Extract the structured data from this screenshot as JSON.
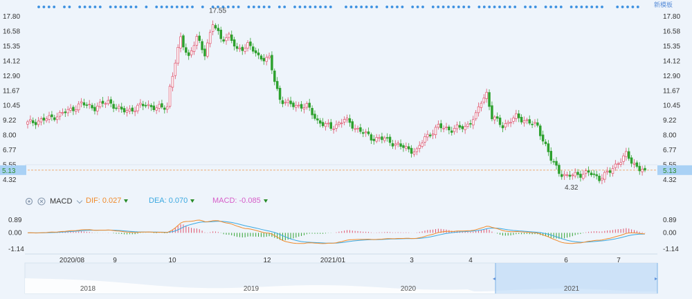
{
  "colors": {
    "up": "#e0506a",
    "down": "#2ea12e",
    "dif": "#f08a2a",
    "dea": "#3aa8e0",
    "macd_pos": "#e0506a",
    "macd_neg": "#2ea12e",
    "current": "#f0a060",
    "dot": "#3a8fe0",
    "label_bg": "#a9d1f5"
  },
  "header_link": "新模板",
  "price_axis": {
    "ticks": [
      "17.80",
      "16.58",
      "15.35",
      "14.12",
      "12.90",
      "11.67",
      "10.45",
      "9.22",
      "8.00",
      "6.77",
      "5.55",
      "4.32"
    ],
    "current_price": "5.13",
    "max_label": "17.55",
    "min_label": "4.32"
  },
  "macd_panel": {
    "title": "MACD",
    "dif_label": "DIF:",
    "dif_value": "0.027",
    "dea_label": "DEA:",
    "dea_value": "0.070",
    "macd_label": "MACD:",
    "macd_value": "-0.085",
    "ticks": [
      "0.89",
      "0.00",
      "-1.14"
    ]
  },
  "x_axis_labels": [
    "2020/08",
    "9",
    "10",
    "12",
    "2021/01",
    "3",
    "4",
    "6",
    "7"
  ],
  "navigator_labels": [
    "2018",
    "2019",
    "2020",
    "2021"
  ],
  "chart_data": {
    "type": "candlestick",
    "price_range": [
      4.32,
      17.8
    ],
    "period_high": 17.55,
    "period_low": 4.32,
    "current": 5.13,
    "anchors": [
      [
        0,
        9.0
      ],
      [
        8,
        9.4
      ],
      [
        15,
        10.0
      ],
      [
        20,
        10.6
      ],
      [
        25,
        10.3
      ],
      [
        30,
        10.8
      ],
      [
        35,
        10.0
      ],
      [
        40,
        10.2
      ],
      [
        44,
        10.6
      ],
      [
        48,
        10.2
      ],
      [
        52,
        10.4
      ],
      [
        53,
        12.0
      ],
      [
        55,
        14.0
      ],
      [
        57,
        16.0
      ],
      [
        60,
        14.5
      ],
      [
        63,
        16.0
      ],
      [
        66,
        14.8
      ],
      [
        69,
        17.2
      ],
      [
        72,
        16.0
      ],
      [
        75,
        16.2
      ],
      [
        78,
        15.0
      ],
      [
        82,
        15.5
      ],
      [
        86,
        14.5
      ],
      [
        90,
        14.3
      ],
      [
        92,
        12.5
      ],
      [
        94,
        11.0
      ],
      [
        98,
        10.5
      ],
      [
        104,
        10.4
      ],
      [
        108,
        9.2
      ],
      [
        113,
        8.6
      ],
      [
        118,
        9.3
      ],
      [
        123,
        8.5
      ],
      [
        128,
        7.8
      ],
      [
        133,
        7.7
      ],
      [
        137,
        7.3
      ],
      [
        141,
        6.9
      ],
      [
        145,
        6.7
      ],
      [
        148,
        7.8
      ],
      [
        153,
        8.7
      ],
      [
        158,
        8.5
      ],
      [
        163,
        8.7
      ],
      [
        167,
        9.6
      ],
      [
        169,
        10.8
      ],
      [
        171,
        11.5
      ],
      [
        173,
        9.5
      ],
      [
        177,
        8.8
      ],
      [
        182,
        9.5
      ],
      [
        186,
        9.2
      ],
      [
        190,
        8.7
      ],
      [
        193,
        7.2
      ],
      [
        195,
        6.0
      ],
      [
        198,
        5.0
      ],
      [
        201,
        4.6
      ],
      [
        205,
        4.8
      ],
      [
        209,
        4.9
      ],
      [
        213,
        4.5
      ],
      [
        217,
        5.0
      ],
      [
        220,
        5.8
      ],
      [
        223,
        6.4
      ],
      [
        225,
        5.8
      ],
      [
        228,
        5.3
      ],
      [
        230,
        5.13
      ]
    ],
    "macd_range": [
      -1.14,
      0.89
    ],
    "dif": 0.027,
    "dea": 0.07,
    "macd": -0.085
  }
}
